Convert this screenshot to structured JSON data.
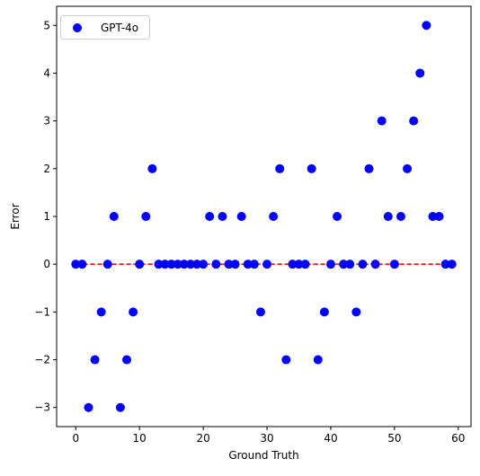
{
  "chart_data": {
    "type": "scatter",
    "xlabel": "Ground Truth",
    "ylabel": "Error",
    "xlim": [
      -3,
      62
    ],
    "ylim": [
      -3.4,
      5.4
    ],
    "xticks": [
      0,
      10,
      20,
      30,
      40,
      50,
      60
    ],
    "yticks": [
      -3,
      -2,
      -1,
      0,
      1,
      2,
      3,
      4,
      5
    ],
    "ytick_labels": [
      "−3",
      "−2",
      "−1",
      "0",
      "1",
      "2",
      "3",
      "4",
      "5"
    ],
    "legend_position": "upper-left",
    "grid": false,
    "series": [
      {
        "name": "GPT-4o",
        "color": "#0000ff",
        "x": [
          0,
          1,
          2,
          3,
          4,
          5,
          6,
          7,
          8,
          9,
          10,
          11,
          12,
          13,
          14,
          15,
          16,
          17,
          18,
          19,
          20,
          21,
          22,
          23,
          24,
          25,
          26,
          27,
          28,
          29,
          30,
          31,
          32,
          33,
          34,
          35,
          36,
          37,
          38,
          39,
          40,
          41,
          42,
          43,
          44,
          45,
          46,
          47,
          48,
          49,
          50,
          51,
          52,
          53,
          54,
          55,
          56,
          57,
          58,
          59
        ],
        "y": [
          0,
          0,
          -3,
          -2,
          -1,
          0,
          1,
          -3,
          -2,
          -1,
          0,
          1,
          2,
          0,
          0,
          0,
          0,
          0,
          0,
          0,
          0,
          1,
          0,
          1,
          0,
          0,
          1,
          0,
          0,
          -1,
          0,
          1,
          2,
          -2,
          0,
          0,
          0,
          2,
          -2,
          -1,
          0,
          1,
          0,
          0,
          -1,
          0,
          2,
          0,
          3,
          1,
          0,
          1,
          2,
          3,
          4,
          5,
          1,
          1,
          0,
          0
        ]
      }
    ],
    "reference_line": {
      "y": 0,
      "x_range": [
        0,
        59
      ],
      "color": "#ff0000",
      "style": "dashed"
    }
  }
}
